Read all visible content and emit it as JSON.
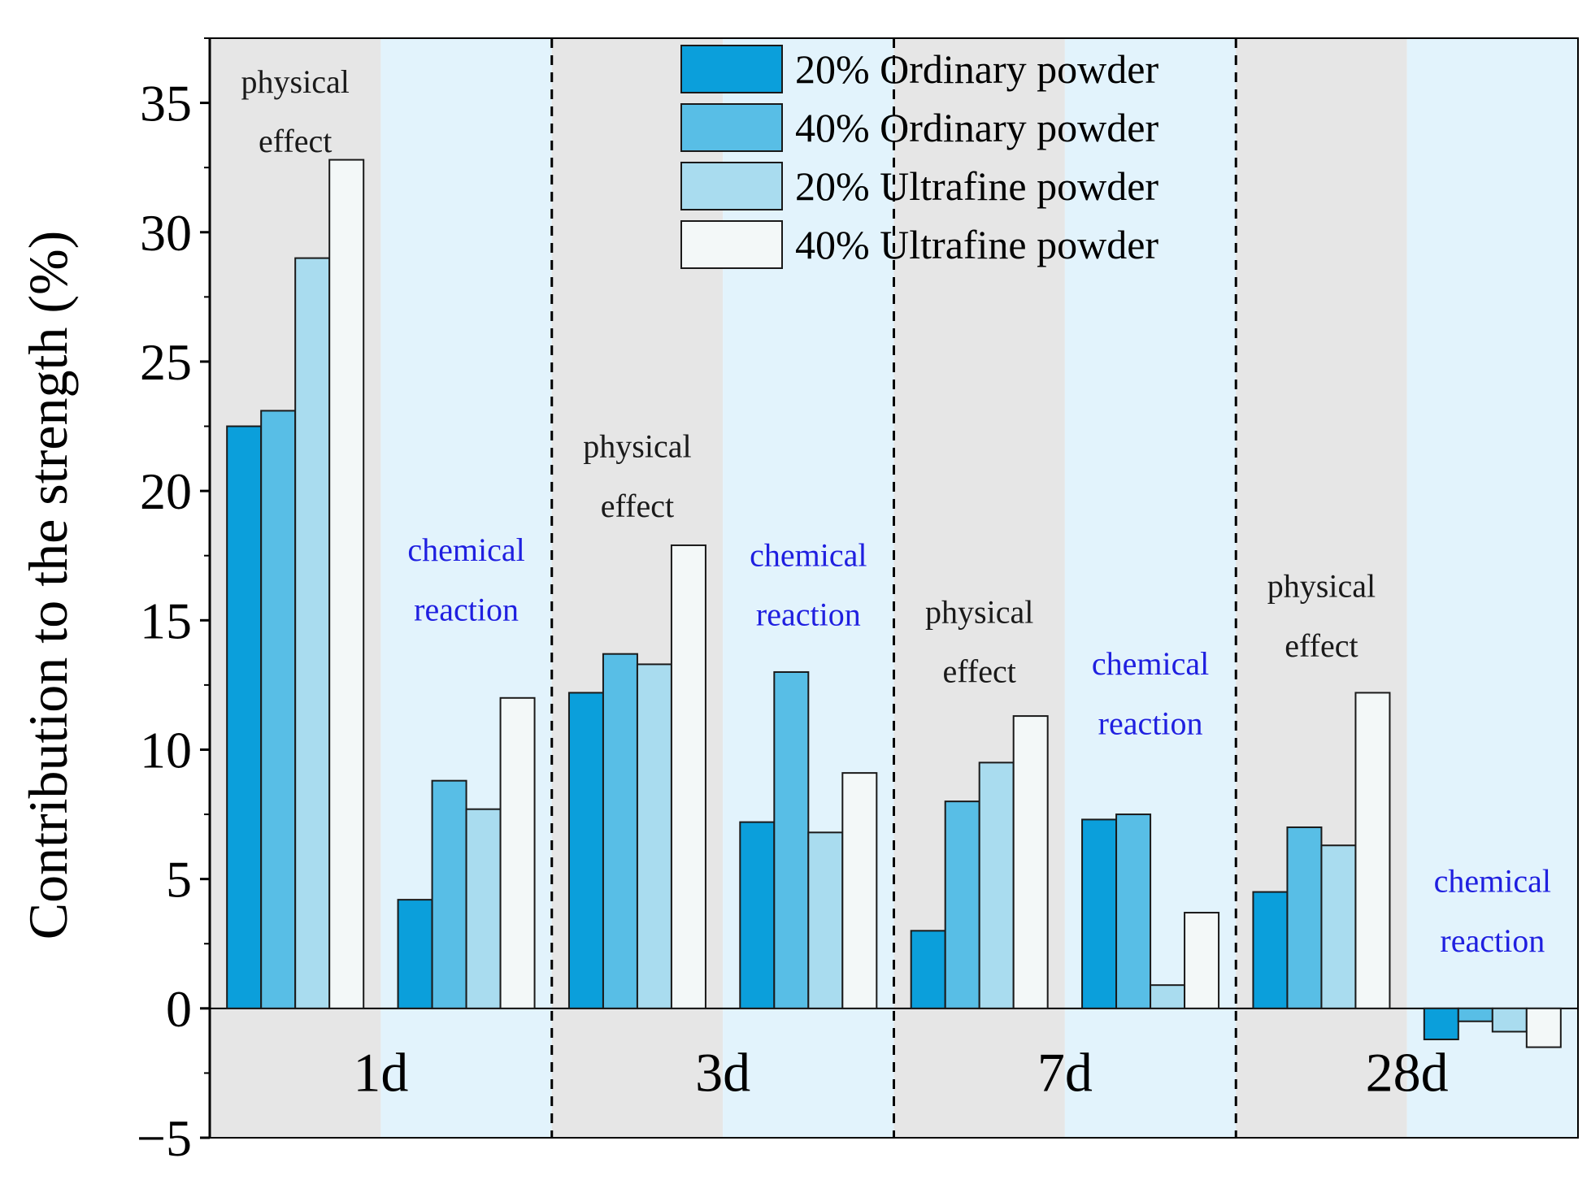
{
  "chart_data": {
    "type": "bar",
    "ylabel": "Contribution to the strength (%)",
    "xlabel": "",
    "ylim": [
      -5,
      37.5
    ],
    "yticks": [
      -5,
      0,
      5,
      10,
      15,
      20,
      25,
      30,
      35
    ],
    "grid": false,
    "legend_position": "top-center",
    "groups": [
      "1d",
      "3d",
      "7d",
      "28d"
    ],
    "subgroups": [
      "physical effect",
      "chemical reaction"
    ],
    "series": [
      {
        "name": "20% Ordinary powder",
        "color": "#0b9fdb",
        "values": {
          "physical": [
            22.5,
            12.2,
            3.0,
            4.5
          ],
          "chemical": [
            4.2,
            7.2,
            7.3,
            -1.2
          ]
        }
      },
      {
        "name": "40% Ordinary powder",
        "color": "#58bee6",
        "values": {
          "physical": [
            23.1,
            13.7,
            8.0,
            7.0
          ],
          "chemical": [
            8.8,
            13.0,
            7.5,
            -0.5
          ]
        }
      },
      {
        "name": "20% Ultrafine powder",
        "color": "#a9dcef",
        "values": {
          "physical": [
            29.0,
            13.3,
            9.5,
            6.3
          ],
          "chemical": [
            7.7,
            6.8,
            0.9,
            -0.9
          ]
        }
      },
      {
        "name": "40% Ultrafine powder",
        "color": "#f3f8f8",
        "values": {
          "physical": [
            32.8,
            17.9,
            11.3,
            12.2
          ],
          "chemical": [
            12.0,
            9.1,
            3.7,
            -1.5
          ]
        }
      }
    ],
    "annotations": {
      "physical": [
        "physical",
        "effect"
      ],
      "chemical": [
        "chemical",
        "reaction"
      ]
    },
    "colors": {
      "physical_bg": "#e6e6e6",
      "chemical_bg": "#e2f3fc",
      "physical_text": "#1a1a1a",
      "chemical_text": "#1f1fe0",
      "bar_stroke": "#1a1a1a"
    }
  }
}
